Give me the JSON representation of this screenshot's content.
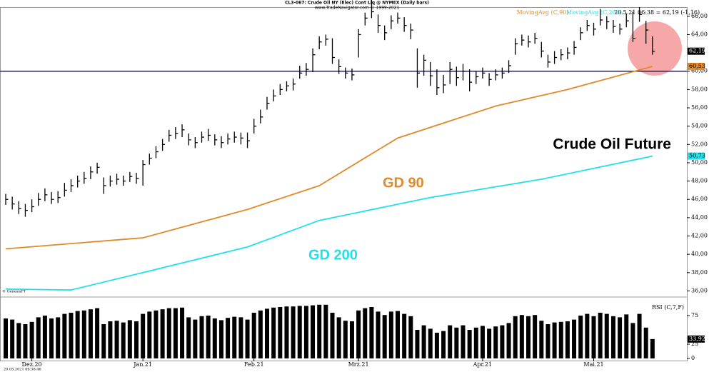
{
  "chart_data": [
    {
      "type": "ohlc",
      "title": "CL3-067: Crude Oil NY (Elec) Cont Liq @ NYMEX (Daily bars)",
      "subtitle": "www.TradeNavigator.com © 1999-2021",
      "info": "20.5.21 06:38 = 62,19 (-1,16)",
      "source": "© GenesisFT",
      "color": "#000000",
      "close": [
        46,
        45.5,
        45,
        44.8,
        45.2,
        46,
        46.5,
        46,
        46.2,
        47,
        47.5,
        48,
        48.3,
        49,
        49.5,
        47.5,
        48,
        48.2,
        48,
        48.5,
        48.3,
        49.8,
        50.5,
        51.2,
        52,
        53,
        53.2,
        53.6,
        52.5,
        52.2,
        52.8,
        53,
        52.5,
        52.2,
        52.6,
        52.8,
        52.7,
        52.4,
        54,
        55,
        56.5,
        57.3,
        58,
        58.4,
        58.6,
        59.8,
        60.2,
        61.8,
        63.2,
        63.5,
        61.5,
        60.5,
        59.8,
        59.6,
        64,
        65.8,
        66.5,
        65,
        64.2,
        65.5,
        65.8,
        65,
        64.5,
        59.8,
        61.2,
        59.5,
        58.2,
        58.5,
        60.2,
        59.3,
        60,
        58.8,
        59.4,
        59.8,
        59.1,
        59.6,
        59.8,
        60.6,
        63,
        63.4,
        63.2,
        63.6,
        62.2,
        61,
        61.5,
        61.8,
        62,
        62.6,
        64.2,
        65,
        64.6,
        65.6,
        65.4,
        64.9,
        64.6,
        65.5,
        63.6,
        66.2,
        64.5,
        62.19
      ],
      "high": [
        46.6,
        46.3,
        45.8,
        45.5,
        46,
        46.7,
        47.2,
        46.8,
        46.9,
        47.8,
        48.2,
        48.6,
        49,
        49.6,
        50,
        48.4,
        48.6,
        48.8,
        48.6,
        49,
        48.9,
        50.3,
        51,
        51.8,
        52.6,
        53.6,
        53.9,
        54.2,
        53.2,
        52.8,
        53.4,
        53.7,
        53.1,
        52.9,
        53.2,
        53.4,
        53.3,
        53.3,
        54.8,
        55.8,
        57.2,
        58,
        58.6,
        58.9,
        59.2,
        60.6,
        60.9,
        62.5,
        63.8,
        64,
        63.6,
        61.3,
        60.4,
        60.3,
        64.6,
        66.4,
        67.8,
        66.2,
        65,
        66.1,
        66.4,
        65.9,
        65.2,
        62.5,
        61.8,
        61,
        60.2,
        59.6,
        61,
        60.5,
        60.8,
        60.2,
        60,
        60.4,
        59.8,
        60.2,
        60.4,
        61.2,
        63.6,
        64,
        63.9,
        64.2,
        63.2,
        61.8,
        62.2,
        62.4,
        62.6,
        63.3,
        64.8,
        65.6,
        65.3,
        66.8,
        66,
        65.6,
        65.2,
        66.3,
        66.5,
        67,
        65.5,
        63.8
      ],
      "low": [
        45.4,
        44.9,
        44.4,
        44.1,
        44.6,
        45.3,
        45.8,
        45.5,
        45.6,
        46.3,
        46.8,
        47.3,
        47.7,
        48.2,
        48.8,
        46.6,
        47.4,
        47.6,
        47.5,
        47.9,
        47.7,
        47.5,
        49.8,
        50.5,
        51.3,
        52.3,
        52.6,
        52.8,
        51.9,
        51.6,
        52.2,
        52.4,
        51.9,
        51.6,
        52,
        52.2,
        52,
        51.6,
        53.2,
        54.3,
        55.8,
        56.7,
        57.4,
        57.8,
        57.9,
        59.2,
        59.5,
        59.9,
        62.4,
        62.8,
        60.8,
        59.7,
        59.2,
        59,
        61.5,
        65,
        65.8,
        64.2,
        63.4,
        64.6,
        65.2,
        64.3,
        63.5,
        58.2,
        59.5,
        58.4,
        57.4,
        57.6,
        58.6,
        58.4,
        59,
        57.8,
        58.6,
        59.2,
        58.4,
        59,
        59.2,
        59.8,
        61.8,
        62.8,
        62.6,
        63,
        61.5,
        60.4,
        60.8,
        61.2,
        61.3,
        61.8,
        63.4,
        64.4,
        63.9,
        65,
        64.6,
        64.2,
        64,
        64.8,
        63.2,
        65.4,
        63,
        61.8
      ],
      "last_close_label": "62,19",
      "series": [
        {
          "name": "MovingAvg (C,90)",
          "color": "#e08a2a",
          "x": [
            0,
            21,
            37,
            48,
            60,
            75,
            86,
            99
          ],
          "values": [
            40.6,
            41.8,
            44.9,
            47.5,
            52.7,
            56.2,
            58,
            60.53
          ],
          "value_labels": [
            null,
            null,
            null,
            null,
            null,
            null,
            null,
            "60,53"
          ]
        },
        {
          "name": "MovingAvg (C,200)",
          "color": "#22e0e8",
          "x": [
            0,
            10,
            21,
            37,
            48,
            65,
            82,
            99
          ],
          "values": [
            36.2,
            36.1,
            38,
            40.8,
            43.7,
            46.2,
            48.2,
            50.73
          ],
          "value_labels": [
            null,
            null,
            null,
            null,
            null,
            null,
            null,
            "50,73"
          ]
        }
      ],
      "hline": 60,
      "hline_color": "#1a237e",
      "annotations": [
        "Crude Oil Future",
        "GD 90",
        "GD 200"
      ],
      "ylim": [
        35.8,
        67
      ],
      "yticks": [
        {
          "value": 36,
          "label": "36,00"
        },
        {
          "value": 38,
          "label": "38,00"
        },
        {
          "value": 40,
          "label": "40,00"
        },
        {
          "value": 42,
          "label": "42,00"
        },
        {
          "value": 44,
          "label": "44,00"
        },
        {
          "value": 46,
          "label": "46,00"
        },
        {
          "value": 48,
          "label": "48,00"
        },
        {
          "value": 50,
          "label": "50,00"
        },
        {
          "value": 52,
          "label": "52,00"
        },
        {
          "value": 54,
          "label": "54,00"
        },
        {
          "value": 56,
          "label": "56,00"
        },
        {
          "value": 58,
          "label": "58,00"
        },
        {
          "value": 60,
          "label": "60,00"
        },
        {
          "value": 64,
          "label": "64,00"
        },
        {
          "value": 66,
          "label": "66,00"
        }
      ]
    },
    {
      "type": "bar",
      "title": "RSI (C,7,F)",
      "color": "#000000",
      "values": [
        70,
        68,
        62,
        60,
        64,
        72,
        75,
        70,
        72,
        78,
        80,
        83,
        84,
        86,
        88,
        60,
        65,
        66,
        63,
        67,
        65,
        78,
        82,
        84,
        86,
        88,
        88,
        89,
        72,
        68,
        74,
        75,
        70,
        67,
        71,
        73,
        72,
        68,
        80,
        84,
        87,
        89,
        90,
        91,
        91,
        92,
        92,
        93,
        94,
        94,
        80,
        72,
        66,
        65,
        84,
        88,
        90,
        82,
        76,
        82,
        83,
        78,
        74,
        50,
        58,
        52,
        45,
        48,
        58,
        54,
        58,
        50,
        54,
        57,
        52,
        56,
        58,
        62,
        74,
        76,
        74,
        76,
        66,
        60,
        63,
        64,
        65,
        68,
        75,
        78,
        74,
        80,
        78,
        74,
        72,
        77,
        62,
        78,
        54,
        33.92
      ],
      "last_label": "33,92",
      "ylim": [
        0,
        100
      ],
      "yticks": [
        0,
        25,
        75
      ],
      "x_labels": [
        {
          "index": 4,
          "label": "Dez.20"
        },
        {
          "index": 21,
          "label": "Jan.21"
        },
        {
          "index": 38,
          "label": "Feb.21"
        },
        {
          "index": 54,
          "label": "Mrz.21"
        },
        {
          "index": 73,
          "label": "Apr.21"
        },
        {
          "index": 90,
          "label": "Mai.21"
        }
      ],
      "footer": "20.05.2021 06:38:46"
    }
  ]
}
